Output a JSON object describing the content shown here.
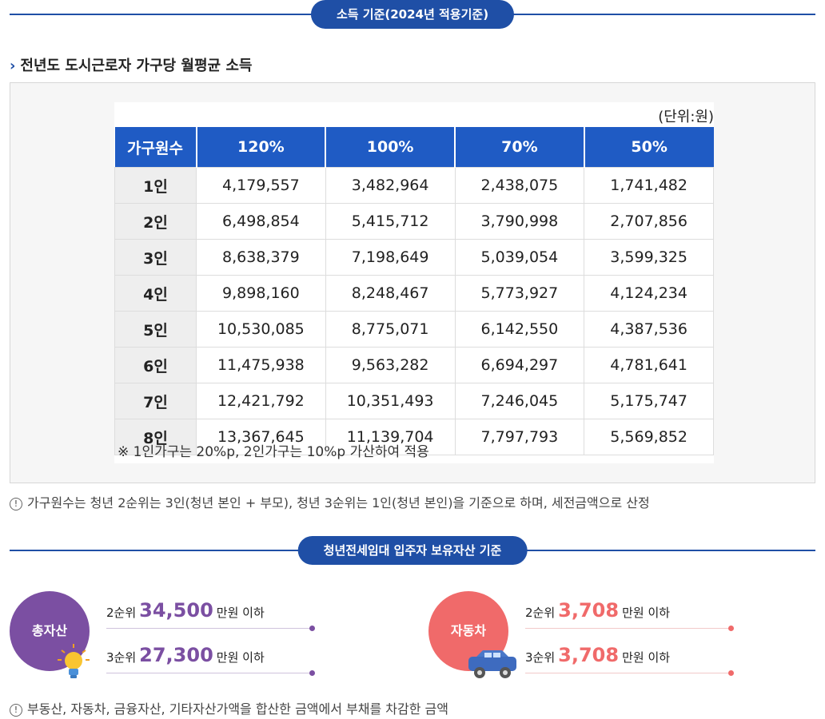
{
  "header1": {
    "label": "소득 기준(2024년 적용기준)"
  },
  "subtitle": {
    "chevron": "›",
    "text": "전년도 도시근로자 가구당 월평균 소득"
  },
  "income_table": {
    "unit": "(단위:원)",
    "columns": [
      "가구원수",
      "120%",
      "100%",
      "70%",
      "50%"
    ],
    "rows": [
      [
        "1인",
        "4,179,557",
        "3,482,964",
        "2,438,075",
        "1,741,482"
      ],
      [
        "2인",
        "6,498,854",
        "5,415,712",
        "3,790,998",
        "2,707,856"
      ],
      [
        "3인",
        "8,638,379",
        "7,198,649",
        "5,039,054",
        "3,599,325"
      ],
      [
        "4인",
        "9,898,160",
        "8,248,467",
        "5,773,927",
        "4,124,234"
      ],
      [
        "5인",
        "10,530,085",
        "8,775,071",
        "6,142,550",
        "4,387,536"
      ],
      [
        "6인",
        "11,475,938",
        "9,563,282",
        "6,694,297",
        "4,781,641"
      ],
      [
        "7인",
        "12,421,792",
        "10,351,493",
        "7,246,045",
        "5,175,747"
      ],
      [
        "8인",
        "13,367,645",
        "11,139,704",
        "7,797,793",
        "5,569,852"
      ]
    ],
    "note": "※ 1인가구는 20%p, 2인가구는 10%p 가산하여 적용"
  },
  "info1": {
    "icon": "!",
    "text": "가구원수는 청년 2순위는 3인(청년 본인 + 부모), 청년 3순위는 1인(청년 본인)을 기준으로 하며, 세전금액으로 산정"
  },
  "header2": {
    "label": "청년전세임대 입주자 보유자산 기준"
  },
  "assets": {
    "total": {
      "label": "총자산",
      "color": "#7b4fa2",
      "rows": [
        {
          "rank": "2순위",
          "amount": "34,500",
          "suffix": "만원 이하"
        },
        {
          "rank": "3순위",
          "amount": "27,300",
          "suffix": "만원 이하"
        }
      ]
    },
    "car": {
      "label": "자동차",
      "color": "#f06a6a",
      "rows": [
        {
          "rank": "2순위",
          "amount": "3,708",
          "suffix": "만원 이하"
        },
        {
          "rank": "3순위",
          "amount": "3,708",
          "suffix": "만원 이하"
        }
      ]
    }
  },
  "info2": {
    "icon": "!",
    "text": "부동산, 자동차, 금융자산, 기타자산가액을 합산한 금액에서 부채를 차감한 금액"
  }
}
